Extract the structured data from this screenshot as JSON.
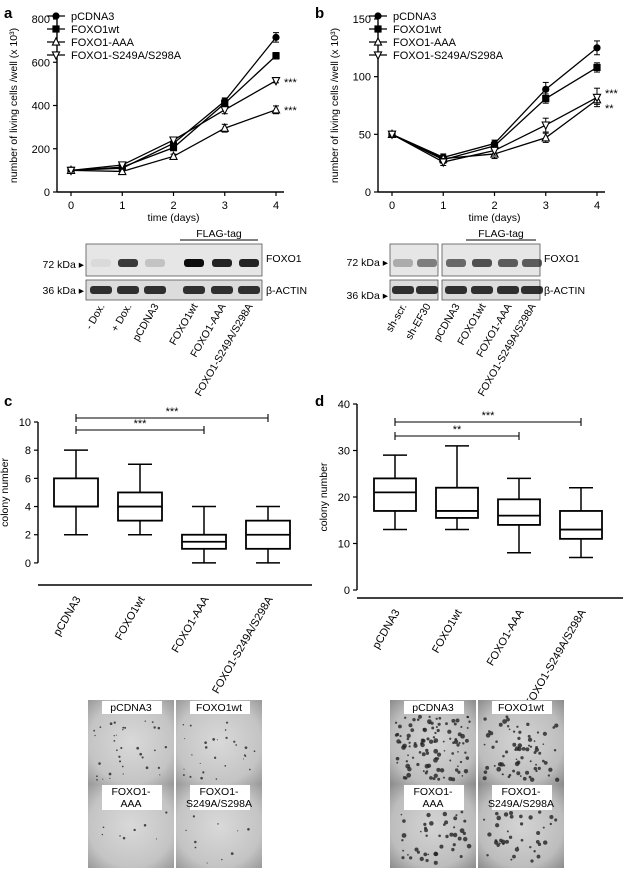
{
  "panels": {
    "a": {
      "letter": "a"
    },
    "b": {
      "letter": "b"
    },
    "c": {
      "letter": "c"
    },
    "d": {
      "letter": "d"
    }
  },
  "chart_data": [
    {
      "id": "a",
      "type": "line",
      "ylabel": "number of living cells /well (x 10³)",
      "xlabel": "time (days)",
      "x": [
        0,
        1,
        2,
        3,
        4
      ],
      "ylim": [
        0,
        800
      ],
      "yticks": [
        0,
        200,
        400,
        600,
        800
      ],
      "xticks": [
        0,
        1,
        2,
        3,
        4
      ],
      "series": [
        {
          "name": "pCDNA3",
          "marker": "circle",
          "values": [
            100,
            110,
            225,
            420,
            715
          ],
          "err": [
            5,
            8,
            12,
            15,
            22
          ]
        },
        {
          "name": "FOXO1wt",
          "marker": "square",
          "values": [
            100,
            115,
            205,
            410,
            630
          ],
          "err": [
            5,
            8,
            12,
            15,
            15
          ]
        },
        {
          "name": "FOXO1-AAA",
          "marker": "triangle-up",
          "values": [
            100,
            95,
            165,
            295,
            380
          ],
          "err": [
            5,
            8,
            10,
            18,
            18
          ]
        },
        {
          "name": "FOXO1-S249A/S298A",
          "marker": "triangle-down",
          "values": [
            100,
            125,
            240,
            380,
            515
          ],
          "err": [
            5,
            10,
            12,
            18,
            10
          ]
        }
      ],
      "annotations": [
        "***",
        "***"
      ]
    },
    {
      "id": "b",
      "type": "line",
      "ylabel": "number of living cells /well (x 10³)",
      "xlabel": "time (days)",
      "x": [
        0,
        1,
        2,
        3,
        4
      ],
      "ylim": [
        0,
        150
      ],
      "yticks": [
        0,
        50,
        100,
        150
      ],
      "xticks": [
        0,
        1,
        2,
        3,
        4
      ],
      "series": [
        {
          "name": "pCDNA3",
          "marker": "circle",
          "values": [
            50,
            30,
            42,
            89,
            125
          ],
          "err": [
            2,
            3,
            3,
            6,
            6
          ]
        },
        {
          "name": "FOXO1wt",
          "marker": "square",
          "values": [
            50,
            28,
            40,
            81,
            108
          ],
          "err": [
            2,
            3,
            3,
            4,
            4
          ]
        },
        {
          "name": "FOXO1-AAA",
          "marker": "triangle-up",
          "values": [
            50,
            29,
            33,
            47,
            80
          ],
          "err": [
            2,
            3,
            4,
            4,
            4
          ]
        },
        {
          "name": "FOXO1-S249A/S298A",
          "marker": "triangle-down",
          "values": [
            50,
            26,
            36,
            58,
            82
          ],
          "err": [
            2,
            3,
            4,
            6,
            8
          ]
        }
      ],
      "annotations": [
        "***",
        "**"
      ]
    },
    {
      "id": "c",
      "type": "box",
      "ylabel": "colony number",
      "ylim": [
        -1,
        10
      ],
      "yticks": [
        0,
        2,
        4,
        6,
        8,
        10
      ],
      "categories": [
        "pCDNA3",
        "FOXO1wt",
        "FOXO1-AAA",
        "FOXO1-S249A/S298A"
      ],
      "boxes": [
        {
          "min": 2,
          "q1": 4,
          "median": 4,
          "q3": 6,
          "max": 8
        },
        {
          "min": 2,
          "q1": 3,
          "median": 4,
          "q3": 5,
          "max": 7
        },
        {
          "min": 0,
          "q1": 1,
          "median": 1.5,
          "q3": 2,
          "max": 4
        },
        {
          "min": 0,
          "q1": 1,
          "median": 2,
          "q3": 3,
          "max": 4
        }
      ],
      "brackets": [
        {
          "from": 0,
          "to": 3,
          "label": "***"
        },
        {
          "from": 0,
          "to": 2,
          "label": "***"
        }
      ]
    },
    {
      "id": "d",
      "type": "box",
      "ylabel": "colony number",
      "ylim": [
        0,
        40
      ],
      "yticks": [
        0,
        10,
        20,
        30,
        40
      ],
      "categories": [
        "pCDNA3",
        "FOXO1wt",
        "FOXO1-AAA",
        "FOXO1-S249A/S298A"
      ],
      "boxes": [
        {
          "min": 13,
          "q1": 17,
          "median": 21,
          "q3": 24,
          "max": 29
        },
        {
          "min": 13,
          "q1": 15.5,
          "median": 17,
          "q3": 22,
          "max": 31
        },
        {
          "min": 8,
          "q1": 14,
          "median": 16,
          "q3": 19.5,
          "max": 24
        },
        {
          "min": 7,
          "q1": 11,
          "median": 13,
          "q3": 17,
          "max": 22
        }
      ],
      "brackets": [
        {
          "from": 0,
          "to": 3,
          "label": "***"
        },
        {
          "from": 0,
          "to": 2,
          "label": "**"
        }
      ]
    }
  ],
  "blots": {
    "a": {
      "flag_tag": "FLAG-tag",
      "marker_top": "72 kDa ▸",
      "marker_bottom": "36 kDa ▸",
      "band_top": "FOXO1",
      "band_bottom": "β-ACTIN",
      "lanes": [
        "- Dox.",
        "+ Dox.",
        "pCDNA3",
        "FOXO1wt",
        "FOXO1-AAA",
        "FOXO1-S249A/S298A"
      ]
    },
    "b": {
      "flag_tag": "FLAG-tag",
      "marker_top": "72 kDa ▸",
      "marker_bottom": "36 kDa ▸",
      "band_top": "FOXO1",
      "band_bottom": "β-ACTIN",
      "lanes": [
        "sh-scr.",
        "sh-EF30",
        "pCDNA3",
        "FOXO1wt",
        "FOXO1-AAA",
        "FOXO1-S249A/S298A"
      ]
    }
  },
  "photos": {
    "c": [
      {
        "label1": "pCDNA3",
        "label2": ""
      },
      {
        "label1": "FOXO1wt",
        "label2": ""
      },
      {
        "label1": "FOXO1-",
        "label2": "AAA"
      },
      {
        "label1": "FOXO1-",
        "label2": "S249A/S298A"
      }
    ],
    "d": [
      {
        "label1": "pCDNA3",
        "label2": ""
      },
      {
        "label1": "FOXO1wt",
        "label2": ""
      },
      {
        "label1": "FOXO1-",
        "label2": "AAA"
      },
      {
        "label1": "FOXO1-",
        "label2": "S249A/S298A"
      }
    ]
  }
}
